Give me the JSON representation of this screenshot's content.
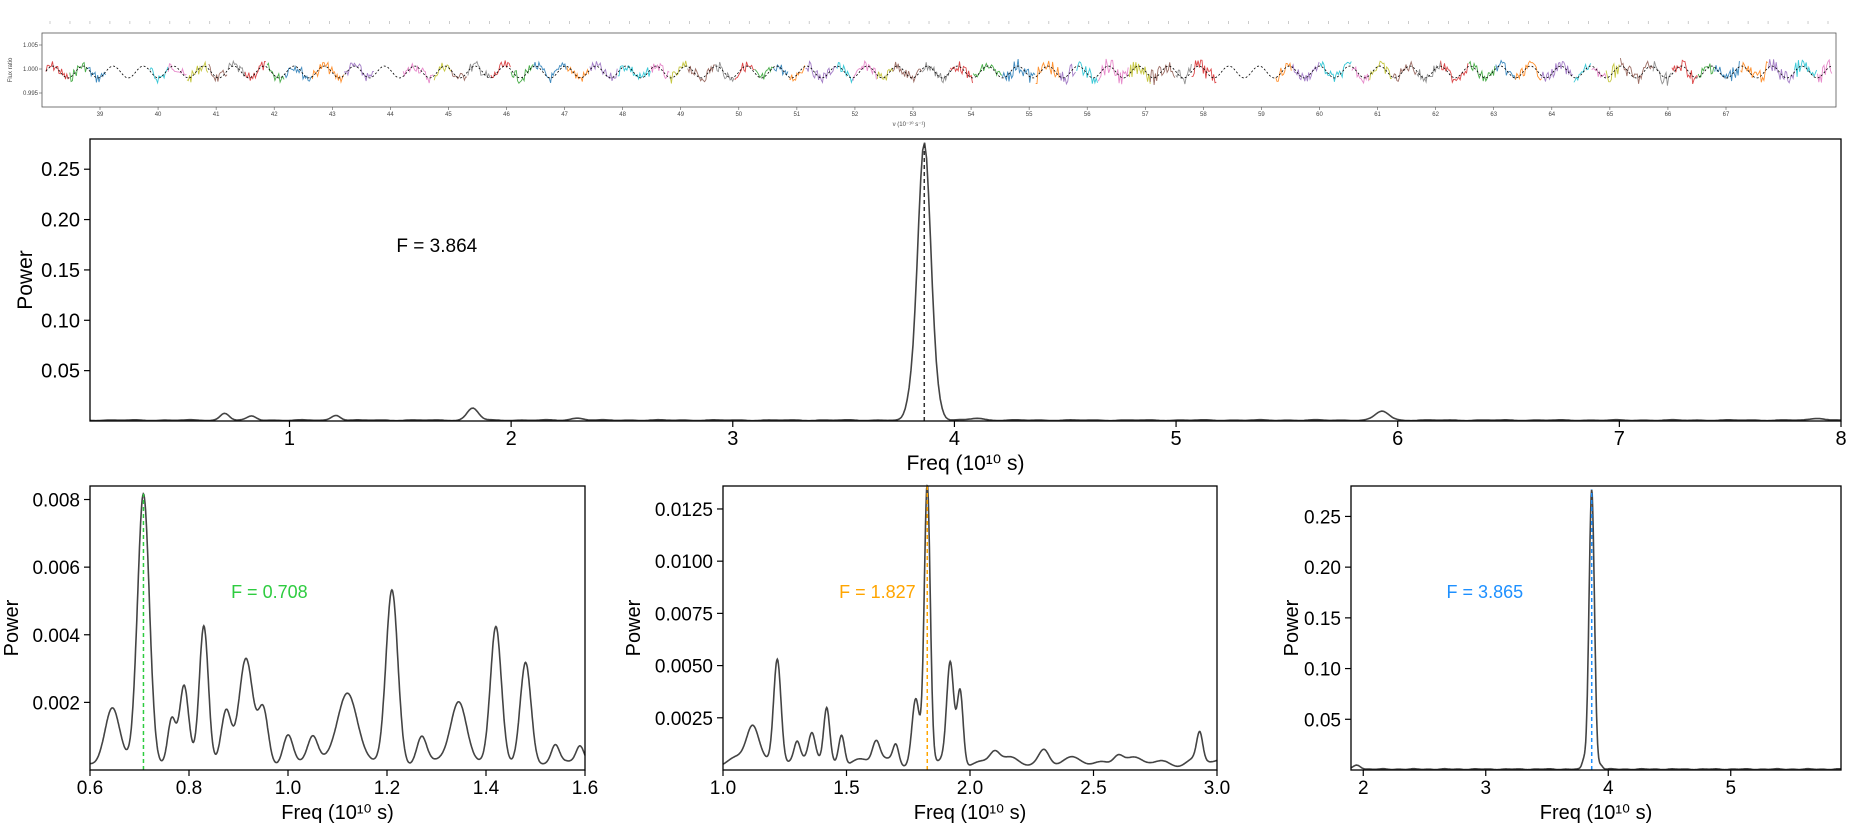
{
  "strip": {
    "ylabel": "Flux ratio",
    "xlabel": "ν (10⁻¹⁰ s⁻¹)",
    "yticks": [
      "1.005",
      "1.000",
      "0.995"
    ],
    "xticks": [
      "39",
      "40",
      "41",
      "42",
      "43",
      "44",
      "45",
      "46",
      "47",
      "48",
      "49",
      "50",
      "51",
      "52",
      "53",
      "54",
      "55",
      "56",
      "57",
      "58",
      "59",
      "60",
      "61",
      "62",
      "63",
      "64",
      "65",
      "66",
      "67"
    ],
    "colors": [
      "#d62728",
      "#2ca02c",
      "#1f77b4",
      "#ff7f0e",
      "#9467bd",
      "#17becf",
      "#e377c2",
      "#bcbd22",
      "#8c564b",
      "#7f7f7f"
    ]
  },
  "chart_data": [
    {
      "type": "line",
      "title": "",
      "xlabel": "Freq (10¹⁰ s)",
      "ylabel": "Power",
      "xlim": [
        0.1,
        8.0
      ],
      "ylim": [
        0.0,
        0.28
      ],
      "xticks": [
        1,
        2,
        3,
        4,
        5,
        6,
        7,
        8
      ],
      "yticks": [
        0.05,
        0.1,
        0.15,
        0.2,
        0.25
      ],
      "ytick_labels": [
        "0.05",
        "0.10",
        "0.15",
        "0.20",
        "0.25"
      ],
      "marker_freq": 3.864,
      "marker_color": "#333333",
      "annotation": "F = 3.864",
      "annotation_color": "#000000",
      "peaks": [
        {
          "f": 3.864,
          "a": 0.276,
          "w": 0.03
        },
        {
          "f": 3.8,
          "a": 0.012,
          "w": 0.02
        },
        {
          "f": 3.93,
          "a": 0.006,
          "w": 0.02
        },
        {
          "f": 1.827,
          "a": 0.012,
          "w": 0.025
        },
        {
          "f": 0.708,
          "a": 0.007,
          "w": 0.02
        },
        {
          "f": 0.83,
          "a": 0.004,
          "w": 0.02
        },
        {
          "f": 1.21,
          "a": 0.005,
          "w": 0.02
        },
        {
          "f": 5.93,
          "a": 0.009,
          "w": 0.03
        },
        {
          "f": 2.3,
          "a": 0.002,
          "w": 0.03
        },
        {
          "f": 4.1,
          "a": 0.002,
          "w": 0.03
        },
        {
          "f": 7.9,
          "a": 0.002,
          "w": 0.03
        }
      ],
      "baseline": 0.0008
    },
    {
      "type": "line",
      "title": "",
      "xlabel": "Freq (10¹⁰ s)",
      "ylabel": "Power",
      "xlim": [
        0.6,
        1.6
      ],
      "ylim": [
        0.0,
        0.0084
      ],
      "xticks": [
        0.6,
        0.8,
        1.0,
        1.2,
        1.4,
        1.6
      ],
      "xtick_labels": [
        "0.6",
        "0.8",
        "1.0",
        "1.2",
        "1.4",
        "1.6"
      ],
      "yticks": [
        0.002,
        0.004,
        0.006,
        0.008
      ],
      "ytick_labels": [
        "0.002",
        "0.004",
        "0.006",
        "0.008"
      ],
      "marker_freq": 0.708,
      "marker_color": "#2ecc40",
      "annotation": "F = 0.708",
      "annotation_color": "#2ecc40",
      "peaks": [
        {
          "f": 0.645,
          "a": 0.0017,
          "w": 0.015
        },
        {
          "f": 0.708,
          "a": 0.008,
          "w": 0.012
        },
        {
          "f": 0.765,
          "a": 0.0013,
          "w": 0.008
        },
        {
          "f": 0.79,
          "a": 0.0022,
          "w": 0.009
        },
        {
          "f": 0.83,
          "a": 0.004,
          "w": 0.009
        },
        {
          "f": 0.875,
          "a": 0.0016,
          "w": 0.01
        },
        {
          "f": 0.915,
          "a": 0.0031,
          "w": 0.014
        },
        {
          "f": 0.95,
          "a": 0.0016,
          "w": 0.01
        },
        {
          "f": 1.0,
          "a": 0.0009,
          "w": 0.01
        },
        {
          "f": 1.05,
          "a": 0.0007,
          "w": 0.01
        },
        {
          "f": 1.12,
          "a": 0.0021,
          "w": 0.02
        },
        {
          "f": 1.21,
          "a": 0.0052,
          "w": 0.012
        },
        {
          "f": 1.27,
          "a": 0.0008,
          "w": 0.01
        },
        {
          "f": 1.345,
          "a": 0.0018,
          "w": 0.016
        },
        {
          "f": 1.42,
          "a": 0.004,
          "w": 0.011
        },
        {
          "f": 1.48,
          "a": 0.0031,
          "w": 0.011
        },
        {
          "f": 1.54,
          "a": 0.0005,
          "w": 0.008
        },
        {
          "f": 1.59,
          "a": 0.0005,
          "w": 0.008
        }
      ],
      "baseline": 0.0002
    },
    {
      "type": "line",
      "title": "",
      "xlabel": "Freq (10¹⁰ s)",
      "ylabel": "Power",
      "xlim": [
        1.0,
        3.0
      ],
      "ylim": [
        0.0,
        0.0136
      ],
      "xticks": [
        1.0,
        1.5,
        2.0,
        2.5,
        3.0
      ],
      "xtick_labels": [
        "1.0",
        "1.5",
        "2.0",
        "2.5",
        "3.0"
      ],
      "yticks": [
        0.0025,
        0.005,
        0.0075,
        0.01,
        0.0125
      ],
      "ytick_labels": [
        "0.0025",
        "0.0050",
        "0.0075",
        "0.0100",
        "0.0125"
      ],
      "marker_freq": 1.827,
      "marker_color": "#ffa500",
      "annotation": "F = 1.827",
      "annotation_color": "#ffa500",
      "peaks": [
        {
          "f": 1.12,
          "a": 0.0018,
          "w": 0.025
        },
        {
          "f": 1.22,
          "a": 0.0051,
          "w": 0.015
        },
        {
          "f": 1.3,
          "a": 0.0008,
          "w": 0.012
        },
        {
          "f": 1.36,
          "a": 0.0014,
          "w": 0.014
        },
        {
          "f": 1.42,
          "a": 0.0025,
          "w": 0.012
        },
        {
          "f": 1.48,
          "a": 0.0015,
          "w": 0.012
        },
        {
          "f": 1.62,
          "a": 0.001,
          "w": 0.015
        },
        {
          "f": 1.7,
          "a": 0.0009,
          "w": 0.012
        },
        {
          "f": 1.78,
          "a": 0.003,
          "w": 0.015
        },
        {
          "f": 1.827,
          "a": 0.0133,
          "w": 0.012
        },
        {
          "f": 1.92,
          "a": 0.0046,
          "w": 0.014
        },
        {
          "f": 1.96,
          "a": 0.0035,
          "w": 0.012
        },
        {
          "f": 2.1,
          "a": 0.0006,
          "w": 0.02
        },
        {
          "f": 2.3,
          "a": 0.0006,
          "w": 0.02
        },
        {
          "f": 2.6,
          "a": 0.0005,
          "w": 0.02
        },
        {
          "f": 2.93,
          "a": 0.0013,
          "w": 0.012
        }
      ],
      "baseline": 0.0004
    },
    {
      "type": "line",
      "title": "",
      "xlabel": "Freq (10¹⁰ s)",
      "ylabel": "Power",
      "xlim": [
        1.9,
        5.9
      ],
      "ylim": [
        0.0,
        0.28
      ],
      "xticks": [
        2,
        3,
        4,
        5
      ],
      "yticks": [
        0.05,
        0.1,
        0.15,
        0.2,
        0.25
      ],
      "ytick_labels": [
        "0.05",
        "0.10",
        "0.15",
        "0.20",
        "0.25"
      ],
      "marker_freq": 3.865,
      "marker_color": "#1e90ff",
      "annotation": "F = 3.865",
      "annotation_color": "#1e90ff",
      "peaks": [
        {
          "f": 3.865,
          "a": 0.276,
          "w": 0.022
        },
        {
          "f": 3.8,
          "a": 0.008,
          "w": 0.015
        },
        {
          "f": 3.94,
          "a": 0.004,
          "w": 0.015
        },
        {
          "f": 1.95,
          "a": 0.004,
          "w": 0.03
        }
      ],
      "baseline": 0.0008
    }
  ]
}
